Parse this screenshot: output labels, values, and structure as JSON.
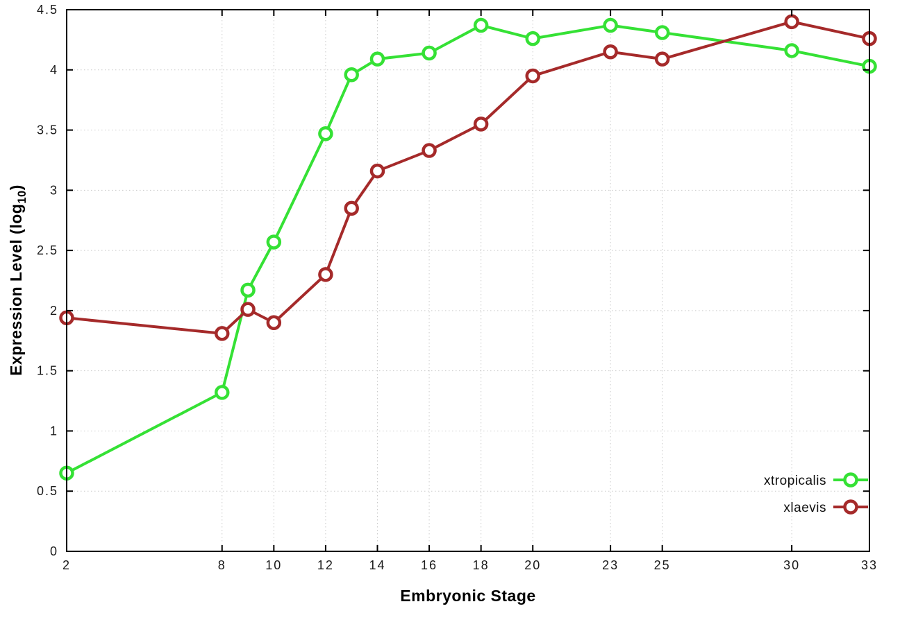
{
  "figure": {
    "background": "#ffffff"
  },
  "chart_data": {
    "type": "line",
    "title": "",
    "xlabel": "Embryonic Stage",
    "ylabel": {
      "main": "Expression Level (log",
      "sub": "10",
      "end": ")"
    },
    "x": [
      2,
      8,
      9,
      10,
      12,
      13,
      14,
      16,
      18,
      20,
      23,
      25,
      30,
      33
    ],
    "xticks": [
      2,
      8,
      10,
      12,
      14,
      16,
      18,
      20,
      23,
      25,
      30,
      33
    ],
    "xtick_labels": [
      "2",
      "8",
      "10",
      "12",
      "14",
      "16",
      "18",
      "20",
      "23",
      "25",
      "30",
      "33"
    ],
    "xlim": [
      2,
      33
    ],
    "yticks": [
      0,
      0.5,
      1,
      1.5,
      2,
      2.5,
      3,
      3.5,
      4,
      4.5
    ],
    "ytick_labels": [
      "0",
      "0.5",
      "1",
      "1.5",
      "2",
      "2.5",
      "3",
      "3.5",
      "4",
      "4.5"
    ],
    "ylim": [
      0,
      4.5
    ],
    "grid": true,
    "legend_position": "bottom-right-inside",
    "series": [
      {
        "name": "xtropicalis",
        "color": "#35e135",
        "values": [
          0.65,
          1.32,
          2.17,
          2.57,
          3.47,
          3.96,
          4.09,
          4.14,
          4.37,
          4.26,
          4.37,
          4.31,
          4.16,
          4.03
        ]
      },
      {
        "name": "xlaevis",
        "color": "#a52a2a",
        "values": [
          1.94,
          1.81,
          2.01,
          1.9,
          2.3,
          2.85,
          3.16,
          3.33,
          3.55,
          3.95,
          4.15,
          4.09,
          4.4,
          4.26
        ]
      }
    ]
  },
  "styles": {
    "grid_color": "#c9c9c9",
    "border_color": "#000000",
    "tick_color": "#000000",
    "tick_label_color": "#1a1a1a",
    "legend_text_color": "#111111",
    "marker_fill": "#ffffff"
  }
}
